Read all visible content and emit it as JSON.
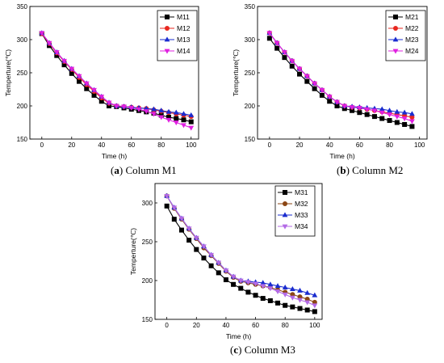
{
  "chart_data": [
    {
      "type": "line",
      "panel_letter": "a",
      "caption": "Column M1",
      "xlabel": "Time (h)",
      "ylabel": "Temperture(℃)",
      "xlim": [
        -8,
        105
      ],
      "ylim": [
        150,
        350
      ],
      "xticks": [
        0,
        20,
        40,
        60,
        80,
        100
      ],
      "yticks": [
        150,
        200,
        250,
        300,
        350
      ],
      "legend_position": "top-right",
      "grid": false,
      "series": [
        {
          "name": "M11",
          "color": "#000000",
          "marker": "square",
          "x": [
            0,
            5,
            10,
            15,
            20,
            25,
            30,
            35,
            40,
            45,
            50,
            55,
            60,
            65,
            70,
            75,
            80,
            85,
            90,
            95,
            100
          ],
          "y": [
            309,
            291,
            276,
            262,
            249,
            237,
            226,
            216,
            207,
            200,
            199,
            197,
            195,
            193,
            191,
            189,
            186,
            183,
            181,
            179,
            176
          ]
        },
        {
          "name": "M12",
          "color": "#e8271f",
          "marker": "circle",
          "x": [
            0,
            5,
            10,
            15,
            20,
            25,
            30,
            35,
            40,
            45,
            50,
            55,
            60,
            65,
            70,
            75,
            80,
            85,
            90,
            95,
            100
          ],
          "y": [
            309,
            294,
            280,
            267,
            255,
            243,
            232,
            222,
            212,
            204,
            200,
            199,
            198,
            197,
            196,
            194,
            192,
            190,
            188,
            186,
            184
          ]
        },
        {
          "name": "M13",
          "color": "#1a2ccf",
          "marker": "triangle-up",
          "x": [
            0,
            5,
            10,
            15,
            20,
            25,
            30,
            35,
            40,
            45,
            50,
            55,
            60,
            65,
            70,
            75,
            80,
            85,
            90,
            95,
            100
          ],
          "y": [
            310,
            295,
            281,
            268,
            256,
            245,
            234,
            224,
            214,
            205,
            200,
            199,
            198,
            197,
            196,
            195,
            193,
            191,
            190,
            188,
            186
          ]
        },
        {
          "name": "M14",
          "color": "#e020e0",
          "marker": "triangle-down",
          "x": [
            0,
            5,
            10,
            15,
            20,
            25,
            30,
            35,
            40,
            45,
            50,
            55,
            60,
            65,
            70,
            75,
            80,
            85,
            90,
            95,
            100
          ],
          "y": [
            310,
            295,
            281,
            268,
            256,
            245,
            234,
            224,
            214,
            205,
            200,
            199,
            197,
            195,
            192,
            188,
            183,
            179,
            175,
            171,
            167
          ]
        }
      ]
    },
    {
      "type": "line",
      "panel_letter": "b",
      "caption": "Column M2",
      "xlabel": "Time (h)",
      "ylabel": "Temperture(℃)",
      "xlim": [
        -8,
        105
      ],
      "ylim": [
        150,
        350
      ],
      "xticks": [
        0,
        20,
        40,
        60,
        80,
        100
      ],
      "yticks": [
        150,
        200,
        250,
        300,
        350
      ],
      "legend_position": "top-right",
      "grid": false,
      "series": [
        {
          "name": "M21",
          "color": "#000000",
          "marker": "square",
          "x": [
            0,
            5,
            10,
            15,
            20,
            25,
            30,
            35,
            40,
            45,
            50,
            55,
            60,
            65,
            70,
            75,
            80,
            85,
            90,
            95
          ],
          "y": [
            302,
            287,
            273,
            260,
            248,
            237,
            226,
            216,
            207,
            200,
            196,
            193,
            190,
            187,
            184,
            181,
            178,
            175,
            172,
            169
          ]
        },
        {
          "name": "M22",
          "color": "#e8271f",
          "marker": "circle",
          "x": [
            0,
            5,
            10,
            15,
            20,
            25,
            30,
            35,
            40,
            45,
            50,
            55,
            60,
            65,
            70,
            75,
            80,
            85,
            90,
            95
          ],
          "y": [
            310,
            295,
            281,
            268,
            256,
            245,
            234,
            224,
            214,
            206,
            200,
            198,
            197,
            195,
            193,
            191,
            189,
            187,
            185,
            183
          ]
        },
        {
          "name": "M23",
          "color": "#1a2ccf",
          "marker": "triangle-up",
          "x": [
            0,
            5,
            10,
            15,
            20,
            25,
            30,
            35,
            40,
            45,
            50,
            55,
            60,
            65,
            70,
            75,
            80,
            85,
            90,
            95
          ],
          "y": [
            310,
            295,
            281,
            268,
            256,
            245,
            234,
            224,
            214,
            206,
            200,
            199,
            198,
            197,
            196,
            195,
            193,
            191,
            190,
            188
          ]
        },
        {
          "name": "M24",
          "color": "#e020e0",
          "marker": "triangle-down",
          "x": [
            0,
            5,
            10,
            15,
            20,
            25,
            30,
            35,
            40,
            45,
            50,
            55,
            60,
            65,
            70,
            75,
            80,
            85,
            90,
            95
          ],
          "y": [
            310,
            295,
            281,
            268,
            256,
            245,
            234,
            224,
            214,
            206,
            200,
            198,
            197,
            195,
            193,
            190,
            187,
            184,
            181,
            177
          ]
        }
      ]
    },
    {
      "type": "line",
      "panel_letter": "c",
      "caption": "Column M3",
      "xlabel": "Time (h)",
      "ylabel": "Temperture(℃)",
      "xlim": [
        -8,
        105
      ],
      "ylim": [
        150,
        325
      ],
      "xticks": [
        0,
        20,
        40,
        60,
        80,
        100
      ],
      "yticks": [
        150,
        200,
        250,
        300
      ],
      "legend_position": "top-right",
      "grid": false,
      "series": [
        {
          "name": "M31",
          "color": "#000000",
          "marker": "square",
          "x": [
            0,
            5,
            10,
            15,
            20,
            25,
            30,
            35,
            40,
            45,
            50,
            55,
            60,
            65,
            70,
            75,
            80,
            85,
            90,
            95,
            100
          ],
          "y": [
            296,
            279,
            265,
            252,
            240,
            229,
            219,
            210,
            201,
            195,
            190,
            185,
            181,
            177,
            174,
            171,
            168,
            166,
            164,
            162,
            160
          ]
        },
        {
          "name": "M32",
          "color": "#8b4513",
          "marker": "circle",
          "x": [
            0,
            5,
            10,
            15,
            20,
            25,
            30,
            35,
            40,
            45,
            50,
            55,
            60,
            65,
            70,
            75,
            80,
            85,
            90,
            95,
            100
          ],
          "y": [
            309,
            293,
            279,
            266,
            254,
            242,
            232,
            222,
            212,
            204,
            199,
            197,
            195,
            193,
            191,
            188,
            185,
            182,
            179,
            176,
            172
          ]
        },
        {
          "name": "M33",
          "color": "#1a2ccf",
          "marker": "triangle-up",
          "x": [
            0,
            5,
            10,
            15,
            20,
            25,
            30,
            35,
            40,
            45,
            50,
            55,
            60,
            65,
            70,
            75,
            80,
            85,
            90,
            95,
            100
          ],
          "y": [
            309,
            294,
            280,
            267,
            255,
            244,
            233,
            223,
            213,
            205,
            200,
            199,
            198,
            197,
            195,
            193,
            191,
            189,
            187,
            184,
            181
          ]
        },
        {
          "name": "M34",
          "color": "#b36ae6",
          "marker": "triangle-down",
          "x": [
            0,
            5,
            10,
            15,
            20,
            25,
            30,
            35,
            40,
            45,
            50,
            55,
            60,
            65,
            70,
            75,
            80,
            85,
            90,
            95,
            100
          ],
          "y": [
            309,
            294,
            280,
            267,
            255,
            244,
            233,
            223,
            213,
            205,
            200,
            198,
            196,
            193,
            190,
            186,
            182,
            178,
            175,
            172,
            168
          ]
        }
      ]
    }
  ]
}
